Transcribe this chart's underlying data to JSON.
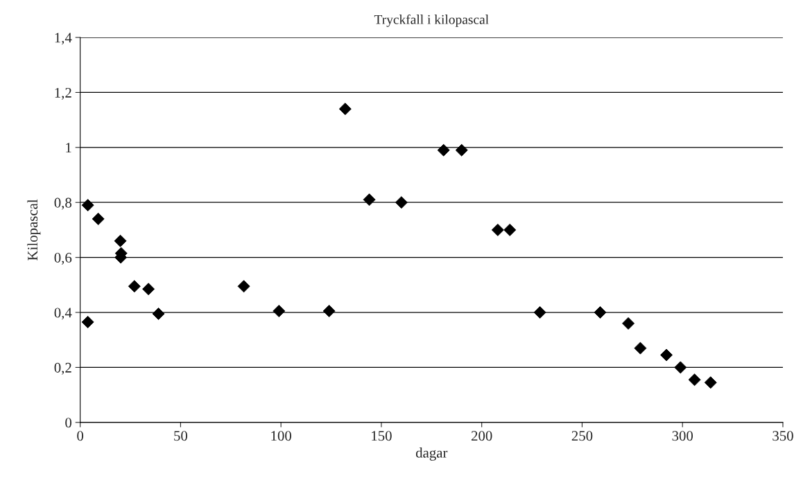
{
  "chart_data": {
    "type": "scatter",
    "title": "Tryckfall i kilopascal",
    "xlabel": "dagar",
    "ylabel": "Kilopascal",
    "x": [
      3.8,
      3.8,
      9,
      20,
      20.4,
      20.2,
      27,
      34,
      39,
      81.5,
      99,
      124,
      132,
      144,
      160,
      181,
      190,
      208,
      214,
      229,
      259,
      273,
      279,
      292,
      299,
      306,
      314
    ],
    "series": [
      {
        "color": "#000000",
        "values": [
          0.79,
          0.365,
          0.74,
          0.66,
          0.615,
          0.6,
          0.495,
          0.485,
          0.395,
          0.495,
          0.405,
          0.405,
          1.14,
          0.81,
          0.8,
          0.99,
          0.99,
          0.7,
          0.7,
          0.4,
          0.4,
          0.36,
          0.27,
          0.245,
          0.2,
          0.155,
          0.145
        ]
      }
    ],
    "xlim": [
      0,
      350
    ],
    "ylim": [
      0,
      1.4
    ],
    "xticks": [
      0,
      50,
      100,
      150,
      200,
      250,
      300,
      350
    ],
    "yticks": [
      {
        "value": 0,
        "label": "0"
      },
      {
        "value": 0.2,
        "label": "0,2"
      },
      {
        "value": 0.4,
        "label": "0,4"
      },
      {
        "value": 0.6,
        "label": "0,6"
      },
      {
        "value": 0.8,
        "label": "0,8"
      },
      {
        "value": 1,
        "label": "1"
      },
      {
        "value": 1.2,
        "label": "1,2"
      },
      {
        "value": 1.4,
        "label": "1,4"
      }
    ],
    "grid": "y",
    "marker": "diamond",
    "legend": false
  }
}
